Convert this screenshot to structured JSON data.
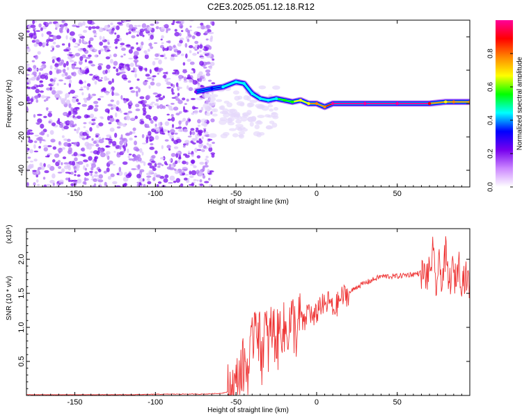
{
  "title": "C2E3.2025.051.12.18.R12",
  "chart_data": [
    {
      "type": "heatmap",
      "xlabel": "Height of straight line (km)",
      "ylabel": "Frequency (Hz)",
      "xlim": [
        -180,
        95
      ],
      "ylim": [
        -50,
        50
      ],
      "xticks": [
        -150,
        -100,
        -50,
        0,
        50
      ],
      "yticks": [
        -40,
        -20,
        0,
        20,
        40
      ],
      "colorbar": {
        "label": "Normalized spectral amplitude",
        "range": [
          0,
          1
        ],
        "ticks": [
          "0.0",
          "0.2",
          "0.4",
          "0.6",
          "0.8"
        ],
        "colors": [
          "#ffffff",
          "#cc88ff",
          "#7700ee",
          "#0000ff",
          "#00ffff",
          "#00ff00",
          "#ffff00",
          "#ff8800",
          "#ff0000",
          "#ff0099"
        ]
      },
      "noise_region": {
        "x": [
          -180,
          -70
        ],
        "y": [
          -50,
          50
        ],
        "amplitude": 0.1
      },
      "ridge": [
        {
          "x": -75,
          "y": 7,
          "amp": 0.25
        },
        {
          "x": -65,
          "y": 9,
          "amp": 0.35
        },
        {
          "x": -58,
          "y": 10,
          "amp": 0.4
        },
        {
          "x": -50,
          "y": 13,
          "amp": 0.45
        },
        {
          "x": -45,
          "y": 12,
          "amp": 0.5
        },
        {
          "x": -40,
          "y": 6,
          "amp": 0.45
        },
        {
          "x": -35,
          "y": 3,
          "amp": 0.45
        },
        {
          "x": -30,
          "y": 2,
          "amp": 0.5
        },
        {
          "x": -25,
          "y": 3,
          "amp": 0.5
        },
        {
          "x": -20,
          "y": 2,
          "amp": 0.55
        },
        {
          "x": -15,
          "y": 1,
          "amp": 0.6
        },
        {
          "x": -10,
          "y": 2,
          "amp": 0.65
        },
        {
          "x": -5,
          "y": 0,
          "amp": 0.7
        },
        {
          "x": 0,
          "y": 0,
          "amp": 0.8
        },
        {
          "x": 5,
          "y": -2,
          "amp": 0.8
        },
        {
          "x": 10,
          "y": 0,
          "amp": 0.95
        },
        {
          "x": 30,
          "y": 0,
          "amp": 1.0
        },
        {
          "x": 50,
          "y": 0,
          "amp": 1.0
        },
        {
          "x": 70,
          "y": 0,
          "amp": 0.9
        },
        {
          "x": 80,
          "y": 1,
          "amp": 0.7
        },
        {
          "x": 85,
          "y": 1,
          "amp": 0.8
        },
        {
          "x": 95,
          "y": 1,
          "amp": 0.8
        }
      ]
    },
    {
      "type": "line",
      "xlabel": "Height of straight line (km)",
      "ylabel": "SNR (10 * v/v)",
      "yscale_label": "(x10⁴)",
      "xlim": [
        -180,
        95
      ],
      "ylim": [
        0,
        2.45
      ],
      "xticks": [
        -150,
        -100,
        -50,
        0,
        50
      ],
      "yticks": [
        "0.5",
        "1.0",
        "1.5",
        "2.0"
      ],
      "series": [
        {
          "color": "#ee3333",
          "x": [
            -180,
            -150,
            -120,
            -90,
            -70,
            -60,
            -55,
            -52,
            -50,
            -48,
            -45,
            -42,
            -40,
            -38,
            -36,
            -34,
            -32,
            -30,
            -28,
            -26,
            -24,
            -22,
            -20,
            -18,
            -15,
            -12,
            -10,
            -8,
            -5,
            -2,
            0,
            2,
            5,
            8,
            10,
            12,
            14,
            16,
            20,
            25,
            30,
            35,
            40,
            45,
            50,
            55,
            60,
            65,
            68,
            70,
            72,
            74,
            76,
            78,
            80,
            82,
            84,
            86,
            88,
            90,
            92,
            95
          ],
          "y": [
            0.01,
            0.01,
            0.01,
            0.02,
            0.02,
            0.03,
            0.05,
            0.08,
            0.12,
            0.3,
            0.45,
            0.4,
            0.7,
            1.3,
            0.9,
            0.6,
            1.0,
            0.7,
            1.0,
            0.9,
            0.8,
            1.1,
            0.9,
            1.0,
            1.1,
            0.9,
            1.2,
            1.0,
            1.3,
            1.1,
            1.2,
            1.35,
            1.3,
            1.4,
            1.25,
            1.3,
            1.4,
            1.45,
            1.5,
            1.6,
            1.65,
            1.7,
            1.75,
            1.75,
            1.75,
            1.77,
            1.78,
            1.8,
            1.75,
            1.8,
            2.1,
            1.6,
            1.9,
            1.7,
            2.1,
            1.6,
            1.85,
            1.7,
            1.95,
            1.7,
            1.75,
            1.65
          ]
        }
      ]
    }
  ]
}
